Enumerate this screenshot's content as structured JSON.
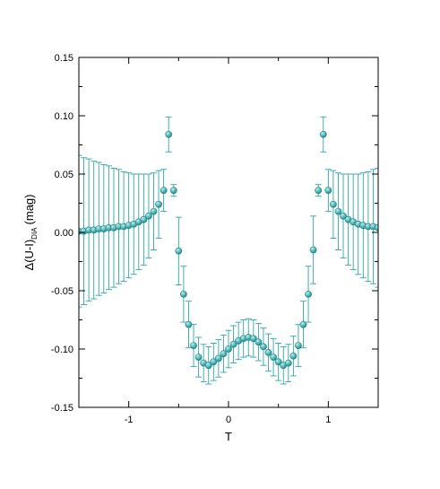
{
  "chart_data": {
    "type": "scatter",
    "title": "",
    "xlabel": "T",
    "ylabel_main": "Δ(U-I)",
    "ylabel_sub": "DIA",
    "ylabel_unit": "(mag)",
    "xlim": [
      -1.5,
      1.5
    ],
    "ylim": [
      -0.15,
      0.15
    ],
    "x_ticks": [
      {
        "value": -1,
        "label": "-1"
      },
      {
        "value": 0,
        "label": "0"
      },
      {
        "value": 1,
        "label": "1"
      }
    ],
    "x_minor_ticks": [
      -1.5,
      -0.5,
      0.5,
      1.5
    ],
    "y_ticks": [
      {
        "value": -0.15,
        "label": "-0.15"
      },
      {
        "value": -0.1,
        "label": "-0.10"
      },
      {
        "value": -0.05,
        "label": "-0.05"
      },
      {
        "value": 0.0,
        "label": "0.00"
      },
      {
        "value": 0.05,
        "label": "0.05"
      },
      {
        "value": 0.1,
        "label": "0.10"
      },
      {
        "value": 0.15,
        "label": "0.15"
      }
    ],
    "y_minor_ticks": [
      -0.125,
      -0.075,
      -0.025,
      0.025,
      0.075,
      0.125
    ],
    "grid": false,
    "legend": "none",
    "colors": {
      "marker": "#1a8c8c",
      "marker_highlight": "#bfeeee",
      "errorbar": "#2fa5a5"
    },
    "points": [
      {
        "x": -1.5,
        "y": 0.001,
        "err": 0.065
      },
      {
        "x": -1.45,
        "y": 0.001,
        "err": 0.063
      },
      {
        "x": -1.4,
        "y": 0.002,
        "err": 0.061
      },
      {
        "x": -1.35,
        "y": 0.002,
        "err": 0.059
      },
      {
        "x": -1.3,
        "y": 0.003,
        "err": 0.057
      },
      {
        "x": -1.25,
        "y": 0.003,
        "err": 0.055
      },
      {
        "x": -1.2,
        "y": 0.004,
        "err": 0.053
      },
      {
        "x": -1.15,
        "y": 0.004,
        "err": 0.051
      },
      {
        "x": -1.1,
        "y": 0.005,
        "err": 0.049
      },
      {
        "x": -1.05,
        "y": 0.005,
        "err": 0.047
      },
      {
        "x": -1.0,
        "y": 0.006,
        "err": 0.045
      },
      {
        "x": -0.95,
        "y": 0.007,
        "err": 0.043
      },
      {
        "x": -0.9,
        "y": 0.009,
        "err": 0.041
      },
      {
        "x": -0.85,
        "y": 0.011,
        "err": 0.039
      },
      {
        "x": -0.8,
        "y": 0.014,
        "err": 0.036
      },
      {
        "x": -0.75,
        "y": 0.018,
        "err": 0.033
      },
      {
        "x": -0.7,
        "y": 0.024,
        "err": 0.029
      },
      {
        "x": -0.65,
        "y": 0.036,
        "err": 0.018
      },
      {
        "x": -0.6,
        "y": 0.084,
        "err": 0.015
      },
      {
        "x": -0.55,
        "y": 0.036,
        "err": 0.005
      },
      {
        "x": -0.5,
        "y": -0.016,
        "err": 0.029
      },
      {
        "x": -0.45,
        "y": -0.053,
        "err": 0.024
      },
      {
        "x": -0.4,
        "y": -0.079,
        "err": 0.02
      },
      {
        "x": -0.35,
        "y": -0.097,
        "err": 0.018
      },
      {
        "x": -0.3,
        "y": -0.107,
        "err": 0.017
      },
      {
        "x": -0.25,
        "y": -0.112,
        "err": 0.016
      },
      {
        "x": -0.2,
        "y": -0.114,
        "err": 0.016
      },
      {
        "x": -0.15,
        "y": -0.111,
        "err": 0.016
      },
      {
        "x": -0.1,
        "y": -0.108,
        "err": 0.016
      },
      {
        "x": -0.05,
        "y": -0.104,
        "err": 0.016
      },
      {
        "x": 0.0,
        "y": -0.1,
        "err": 0.016
      },
      {
        "x": 0.05,
        "y": -0.096,
        "err": 0.016
      },
      {
        "x": 0.1,
        "y": -0.093,
        "err": 0.016
      },
      {
        "x": 0.15,
        "y": -0.091,
        "err": 0.016
      },
      {
        "x": 0.2,
        "y": -0.09,
        "err": 0.016
      },
      {
        "x": 0.25,
        "y": -0.091,
        "err": 0.016
      },
      {
        "x": 0.3,
        "y": -0.094,
        "err": 0.016
      },
      {
        "x": 0.35,
        "y": -0.098,
        "err": 0.016
      },
      {
        "x": 0.4,
        "y": -0.103,
        "err": 0.016
      },
      {
        "x": 0.45,
        "y": -0.107,
        "err": 0.016
      },
      {
        "x": 0.5,
        "y": -0.111,
        "err": 0.016
      },
      {
        "x": 0.55,
        "y": -0.114,
        "err": 0.016
      },
      {
        "x": 0.6,
        "y": -0.112,
        "err": 0.016
      },
      {
        "x": 0.65,
        "y": -0.106,
        "err": 0.017
      },
      {
        "x": 0.7,
        "y": -0.097,
        "err": 0.018
      },
      {
        "x": 0.75,
        "y": -0.079,
        "err": 0.02
      },
      {
        "x": 0.8,
        "y": -0.053,
        "err": 0.024
      },
      {
        "x": 0.85,
        "y": -0.015,
        "err": 0.029
      },
      {
        "x": 0.9,
        "y": 0.036,
        "err": 0.005
      },
      {
        "x": 0.95,
        "y": 0.084,
        "err": 0.015
      },
      {
        "x": 1.0,
        "y": 0.036,
        "err": 0.018
      },
      {
        "x": 1.05,
        "y": 0.024,
        "err": 0.029
      },
      {
        "x": 1.1,
        "y": 0.018,
        "err": 0.033
      },
      {
        "x": 1.15,
        "y": 0.014,
        "err": 0.036
      },
      {
        "x": 1.2,
        "y": 0.011,
        "err": 0.039
      },
      {
        "x": 1.25,
        "y": 0.009,
        "err": 0.041
      },
      {
        "x": 1.3,
        "y": 0.007,
        "err": 0.043
      },
      {
        "x": 1.35,
        "y": 0.006,
        "err": 0.045
      },
      {
        "x": 1.4,
        "y": 0.005,
        "err": 0.047
      },
      {
        "x": 1.45,
        "y": 0.005,
        "err": 0.049
      },
      {
        "x": 1.5,
        "y": 0.004,
        "err": 0.051
      }
    ]
  }
}
